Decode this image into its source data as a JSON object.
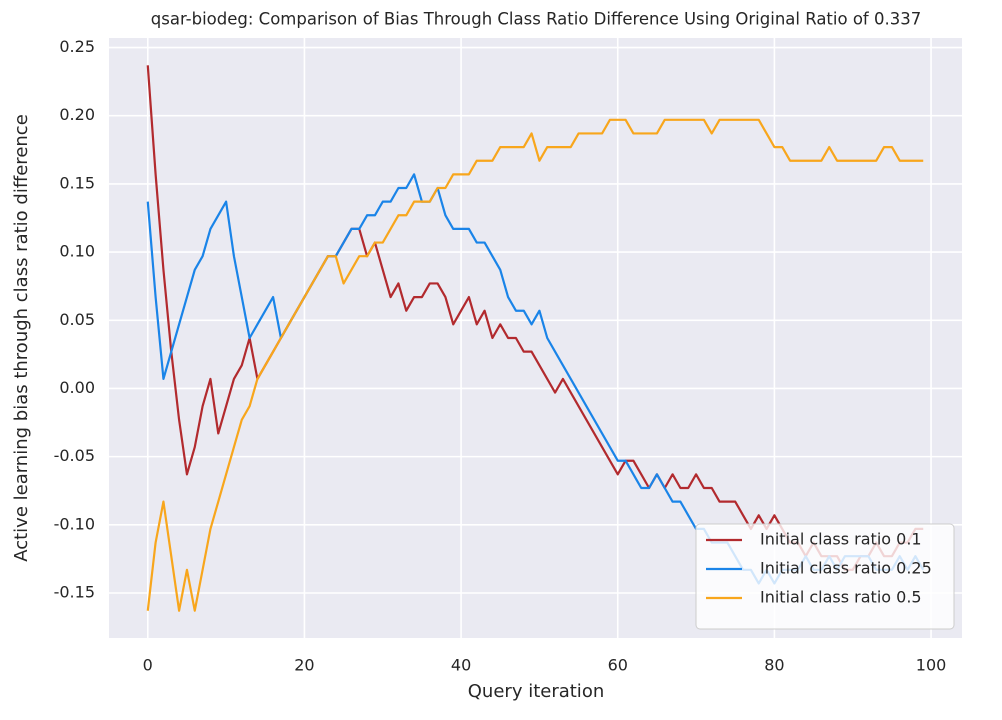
{
  "chart_data": {
    "type": "line",
    "title": "qsar-biodeg: Comparison of Bias Through Class Ratio Difference Using Original Ratio of 0.337",
    "xlabel": "Query iteration",
    "ylabel": "Active learning bias through class ratio difference",
    "x": [
      0,
      1,
      2,
      3,
      4,
      5,
      6,
      7,
      8,
      9,
      10,
      11,
      12,
      13,
      14,
      15,
      16,
      17,
      18,
      19,
      20,
      21,
      22,
      23,
      24,
      25,
      26,
      27,
      28,
      29,
      30,
      31,
      32,
      33,
      34,
      35,
      36,
      37,
      38,
      39,
      40,
      41,
      42,
      43,
      44,
      45,
      46,
      47,
      48,
      49,
      50,
      51,
      52,
      53,
      54,
      55,
      56,
      57,
      58,
      59,
      60,
      61,
      62,
      63,
      64,
      65,
      66,
      67,
      68,
      69,
      70,
      71,
      72,
      73,
      74,
      75,
      76,
      77,
      78,
      79,
      80,
      81,
      82,
      83,
      84,
      85,
      86,
      87,
      88,
      89,
      90,
      91,
      92,
      93,
      94,
      95,
      96,
      97,
      98,
      99
    ],
    "xlim": [
      -4.95,
      103.95
    ],
    "xticks": [
      0,
      20,
      40,
      60,
      80,
      100
    ],
    "ylim": [
      -0.183,
      0.257
    ],
    "yticks": [
      -0.15,
      {
        "value": -0.1,
        "label": "-0.10"
      },
      -0.05,
      {
        "value": 0,
        "label": "0.00"
      },
      0.05,
      {
        "value": 0.1,
        "label": "0.10"
      },
      0.15,
      {
        "value": 0.2,
        "label": "0.20"
      },
      0.25
    ],
    "grid": true,
    "legend": "lower right",
    "series": [
      {
        "name": "Initial class ratio 0.1",
        "color": "#b22a2e",
        "values": [
          0.237,
          0.157,
          0.087,
          0.027,
          -0.023,
          -0.063,
          -0.043,
          -0.013,
          0.007,
          -0.033,
          -0.013,
          0.007,
          0.017,
          0.037,
          0.007,
          0.017,
          0.027,
          0.037,
          0.047,
          0.057,
          0.067,
          0.077,
          0.087,
          0.097,
          0.097,
          0.107,
          0.117,
          0.117,
          0.097,
          0.107,
          0.087,
          0.067,
          0.077,
          0.057,
          0.067,
          0.067,
          0.077,
          0.077,
          0.067,
          0.047,
          0.057,
          0.067,
          0.047,
          0.057,
          0.037,
          0.047,
          0.037,
          0.037,
          0.027,
          0.027,
          0.017,
          0.007,
          -0.003,
          0.007,
          -0.003,
          -0.013,
          -0.023,
          -0.033,
          -0.043,
          -0.053,
          -0.063,
          -0.053,
          -0.053,
          -0.063,
          -0.073,
          -0.063,
          -0.073,
          -0.063,
          -0.073,
          -0.073,
          -0.063,
          -0.073,
          -0.073,
          -0.083,
          -0.083,
          -0.083,
          -0.093,
          -0.103,
          -0.093,
          -0.103,
          -0.093,
          -0.103,
          -0.113,
          -0.113,
          -0.123,
          -0.113,
          -0.123,
          -0.123,
          -0.123,
          -0.133,
          -0.133,
          -0.123,
          -0.123,
          -0.113,
          -0.123,
          -0.123,
          -0.113,
          -0.113,
          -0.103,
          -0.103
        ]
      },
      {
        "name": "Initial class ratio 0.25",
        "color": "#1a84e8",
        "values": [
          0.137,
          0.067,
          0.007,
          0.027,
          0.047,
          0.067,
          0.087,
          0.097,
          0.117,
          0.127,
          0.137,
          0.097,
          0.067,
          0.037,
          0.047,
          0.057,
          0.067,
          0.037,
          0.047,
          0.057,
          0.067,
          0.077,
          0.087,
          0.097,
          0.097,
          0.107,
          0.117,
          0.117,
          0.127,
          0.127,
          0.137,
          0.137,
          0.147,
          0.147,
          0.157,
          0.137,
          0.137,
          0.147,
          0.127,
          0.117,
          0.117,
          0.117,
          0.107,
          0.107,
          0.097,
          0.087,
          0.067,
          0.057,
          0.057,
          0.047,
          0.057,
          0.037,
          0.027,
          0.017,
          0.007,
          -0.003,
          -0.013,
          -0.023,
          -0.033,
          -0.043,
          -0.053,
          -0.053,
          -0.063,
          -0.073,
          -0.073,
          -0.063,
          -0.073,
          -0.083,
          -0.083,
          -0.093,
          -0.103,
          -0.103,
          -0.113,
          -0.113,
          -0.113,
          -0.123,
          -0.133,
          -0.133,
          -0.143,
          -0.133,
          -0.143,
          -0.133,
          -0.133,
          -0.133,
          -0.123,
          -0.133,
          -0.133,
          -0.123,
          -0.133,
          -0.123,
          -0.123,
          -0.123,
          -0.123,
          -0.133,
          -0.133,
          -0.133,
          -0.123,
          -0.133,
          -0.123,
          -0.133
        ]
      },
      {
        "name": "Initial class ratio 0.5",
        "color": "#f8a61c",
        "values": [
          -0.163,
          -0.113,
          -0.083,
          -0.123,
          -0.163,
          -0.133,
          -0.163,
          -0.133,
          -0.103,
          -0.083,
          -0.063,
          -0.043,
          -0.023,
          -0.013,
          0.007,
          0.017,
          0.027,
          0.037,
          0.047,
          0.057,
          0.067,
          0.077,
          0.087,
          0.097,
          0.097,
          0.077,
          0.087,
          0.097,
          0.097,
          0.107,
          0.107,
          0.117,
          0.127,
          0.127,
          0.137,
          0.137,
          0.137,
          0.147,
          0.147,
          0.157,
          0.157,
          0.157,
          0.167,
          0.167,
          0.167,
          0.177,
          0.177,
          0.177,
          0.177,
          0.187,
          0.167,
          0.177,
          0.177,
          0.177,
          0.177,
          0.187,
          0.187,
          0.187,
          0.187,
          0.197,
          0.197,
          0.197,
          0.187,
          0.187,
          0.187,
          0.187,
          0.197,
          0.197,
          0.197,
          0.197,
          0.197,
          0.197,
          0.187,
          0.197,
          0.197,
          0.197,
          0.197,
          0.197,
          0.197,
          0.187,
          0.177,
          0.177,
          0.167,
          0.167,
          0.167,
          0.167,
          0.167,
          0.177,
          0.167,
          0.167,
          0.167,
          0.167,
          0.167,
          0.167,
          0.177,
          0.177,
          0.167,
          0.167,
          0.167,
          0.167
        ]
      }
    ]
  }
}
